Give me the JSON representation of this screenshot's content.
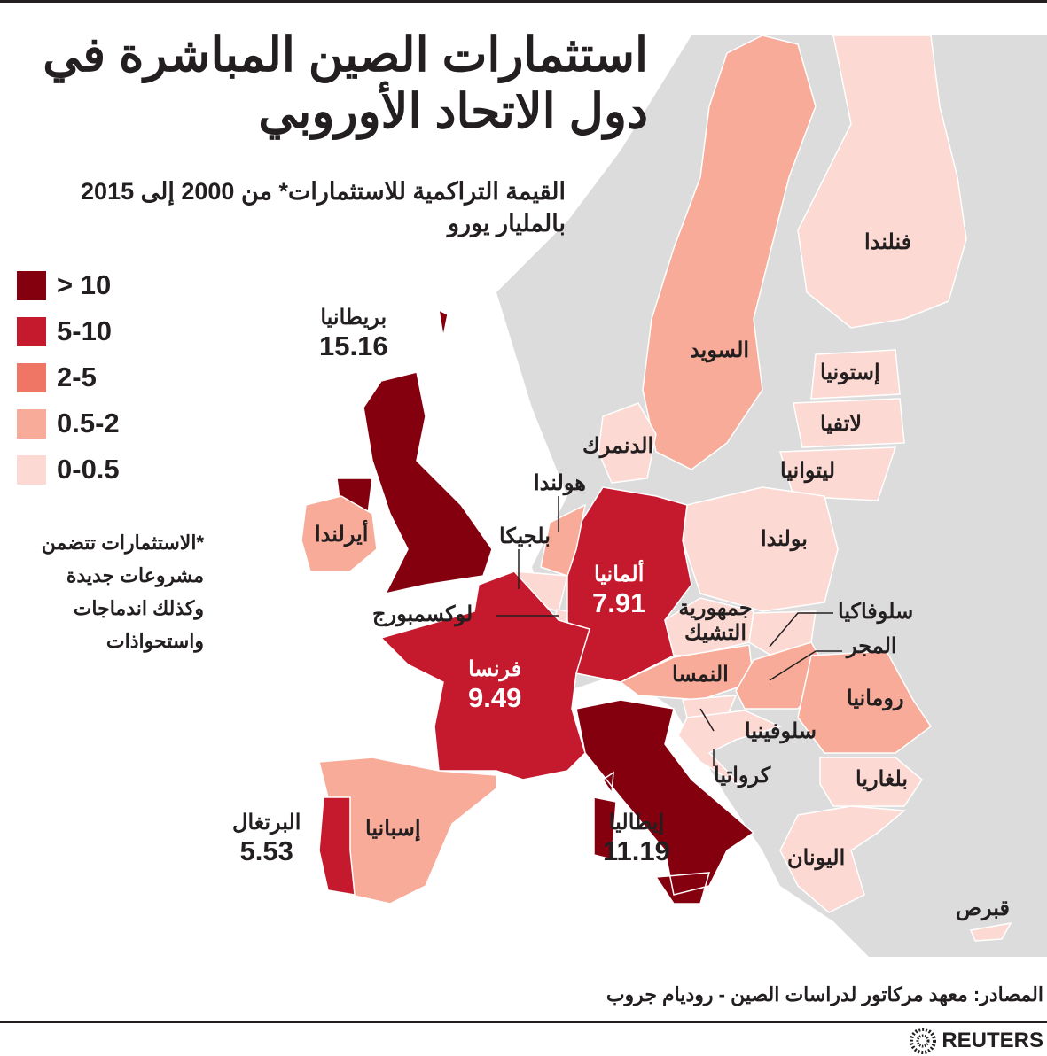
{
  "title": "استثمارات الصين المباشرة في دول الاتحاد الأوروبي",
  "subtitle_line1": "القيمة التراكمية للاستثمارات* من 2000 إلى 2015",
  "subtitle_line2": "بالمليار يورو",
  "legend": [
    {
      "label": "> 10",
      "color": "#85000f"
    },
    {
      "label": "5-10",
      "color": "#c5192d"
    },
    {
      "label": "2-5",
      "color": "#ef7564"
    },
    {
      "label": "0.5-2",
      "color": "#f7ab98"
    },
    {
      "label": "0-0.5",
      "color": "#fcd9d2"
    }
  ],
  "footnote": "*الاستثمارات تتضمن مشروعات جديدة وكذلك اندماجات واستحواذات",
  "countries": {
    "uk": {
      "name": "بريطانيا",
      "value": "15.16",
      "cat": 0
    },
    "italy": {
      "name": "إيطاليا",
      "value": "11.19",
      "cat": 0
    },
    "germany": {
      "name": "ألمانيا",
      "value": "7.91",
      "cat": 1
    },
    "france": {
      "name": "فرنسا",
      "value": "9.49",
      "cat": 1
    },
    "portugal": {
      "name": "البرتغال",
      "value": "5.53",
      "cat": 1
    },
    "spain": {
      "name": "إسبانيا",
      "cat": 3
    },
    "ireland": {
      "name": "أيرلندا",
      "cat": 3
    },
    "sweden": {
      "name": "السويد",
      "cat": 3
    },
    "netherlands": {
      "name": "هولندا",
      "cat": 3
    },
    "austria": {
      "name": "النمسا",
      "cat": 3
    },
    "hungary": {
      "name": "المجر",
      "cat": 3
    },
    "romania": {
      "name": "رومانيا",
      "cat": 3
    },
    "finland": {
      "name": "فنلندا",
      "cat": 4
    },
    "estonia": {
      "name": "إستونيا",
      "cat": 4
    },
    "latvia": {
      "name": "لاتفيا",
      "cat": 4
    },
    "lithuania": {
      "name": "ليتوانيا",
      "cat": 4
    },
    "poland": {
      "name": "بولندا",
      "cat": 4
    },
    "denmark": {
      "name": "الدنمرك",
      "cat": 4
    },
    "belgium": {
      "name": "بلجيكا",
      "cat": 4
    },
    "luxembourg": {
      "name": "لوكسمبورج",
      "cat": 4
    },
    "czech": {
      "name": "جمهورية التشيك",
      "cat": 4
    },
    "slovakia": {
      "name": "سلوفاكيا",
      "cat": 4
    },
    "slovenia": {
      "name": "سلوفينيا",
      "cat": 4
    },
    "croatia": {
      "name": "كرواتيا",
      "cat": 4
    },
    "bulgaria": {
      "name": "بلغاريا",
      "cat": 4
    },
    "greece": {
      "name": "اليونان",
      "cat": 4
    },
    "cyprus": {
      "name": "قبرص",
      "cat": 4
    }
  },
  "source": "المصادر: معهد مركاتور لدراسات الصين - روديام جروب",
  "brand": "REUTERS",
  "colors": {
    "land": "#dcdcdc",
    "border": "#ffffff"
  }
}
